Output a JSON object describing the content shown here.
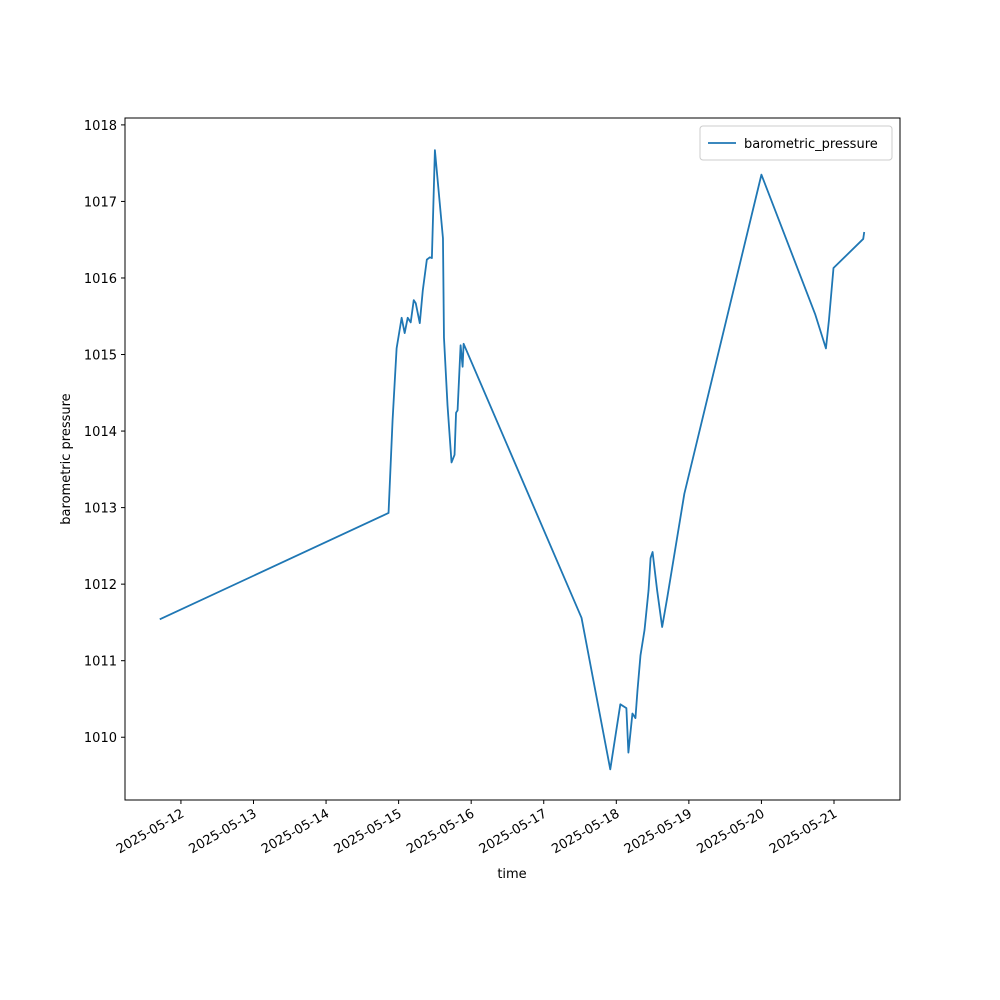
{
  "chart_data": {
    "type": "line",
    "xlabel": "time",
    "ylabel": "barometric pressure",
    "x": [
      "2025-05-11T17:00",
      "2025-05-14T20:40",
      "2025-05-14T22:00",
      "2025-05-14T23:20",
      "2025-05-15T01:00",
      "2025-05-15T02:00",
      "2025-05-15T03:00",
      "2025-05-15T04:00",
      "2025-05-15T05:00",
      "2025-05-15T05:40",
      "2025-05-15T07:00",
      "2025-05-15T08:00",
      "2025-05-15T09:20",
      "2025-05-15T10:20",
      "2025-05-15T11:00",
      "2025-05-15T12:00",
      "2025-05-15T14:40",
      "2025-05-15T15:00",
      "2025-05-15T16:10",
      "2025-05-15T17:30",
      "2025-05-15T18:30",
      "2025-05-15T19:00",
      "2025-05-15T19:30",
      "2025-05-15T20:30",
      "2025-05-15T21:10",
      "2025-05-15T21:30",
      "2025-05-17T12:30",
      "2025-05-17T22:00",
      "2025-05-18T01:20",
      "2025-05-18T03:20",
      "2025-05-18T04:00",
      "2025-05-18T05:20",
      "2025-05-18T06:20",
      "2025-05-18T07:00",
      "2025-05-18T08:00",
      "2025-05-18T09:20",
      "2025-05-18T10:40",
      "2025-05-18T11:20",
      "2025-05-18T12:00",
      "2025-05-18T13:30",
      "2025-05-18T15:10",
      "2025-05-18T16:50",
      "2025-05-18T22:30",
      "2025-05-20T00:00",
      "2025-05-20T17:50",
      "2025-05-20T21:20",
      "2025-05-20T22:20",
      "2025-05-20T23:50",
      "2025-05-21T09:40",
      "2025-05-21T10:00"
    ],
    "series": [
      {
        "name": "barometric_pressure",
        "color": "#1f77b4",
        "values": [
          1011.54,
          1012.93,
          1014.14,
          1015.08,
          1015.48,
          1015.28,
          1015.48,
          1015.42,
          1015.71,
          1015.67,
          1015.41,
          1015.84,
          1016.24,
          1016.27,
          1016.26,
          1017.67,
          1016.52,
          1015.22,
          1014.34,
          1013.59,
          1013.69,
          1014.24,
          1014.27,
          1015.12,
          1014.84,
          1015.14,
          1011.56,
          1009.58,
          1010.43,
          1010.38,
          1009.8,
          1010.31,
          1010.25,
          1010.61,
          1011.07,
          1011.4,
          1011.92,
          1012.34,
          1012.42,
          1011.92,
          1011.44,
          1011.82,
          1013.18,
          1017.35,
          1015.52,
          1015.08,
          1015.45,
          1016.13,
          1016.51,
          1016.6
        ]
      }
    ],
    "xlim": [
      "2025-05-11T05:30",
      "2025-05-21T21:50"
    ],
    "xticks": [
      "2025-05-12",
      "2025-05-13",
      "2025-05-14",
      "2025-05-15",
      "2025-05-16",
      "2025-05-17",
      "2025-05-18",
      "2025-05-19",
      "2025-05-20",
      "2025-05-21"
    ],
    "ylim": [
      1009.18,
      1018.09
    ],
    "yticks": [
      1010,
      1011,
      1012,
      1013,
      1014,
      1015,
      1016,
      1017,
      1018
    ],
    "legend": "upper right"
  }
}
